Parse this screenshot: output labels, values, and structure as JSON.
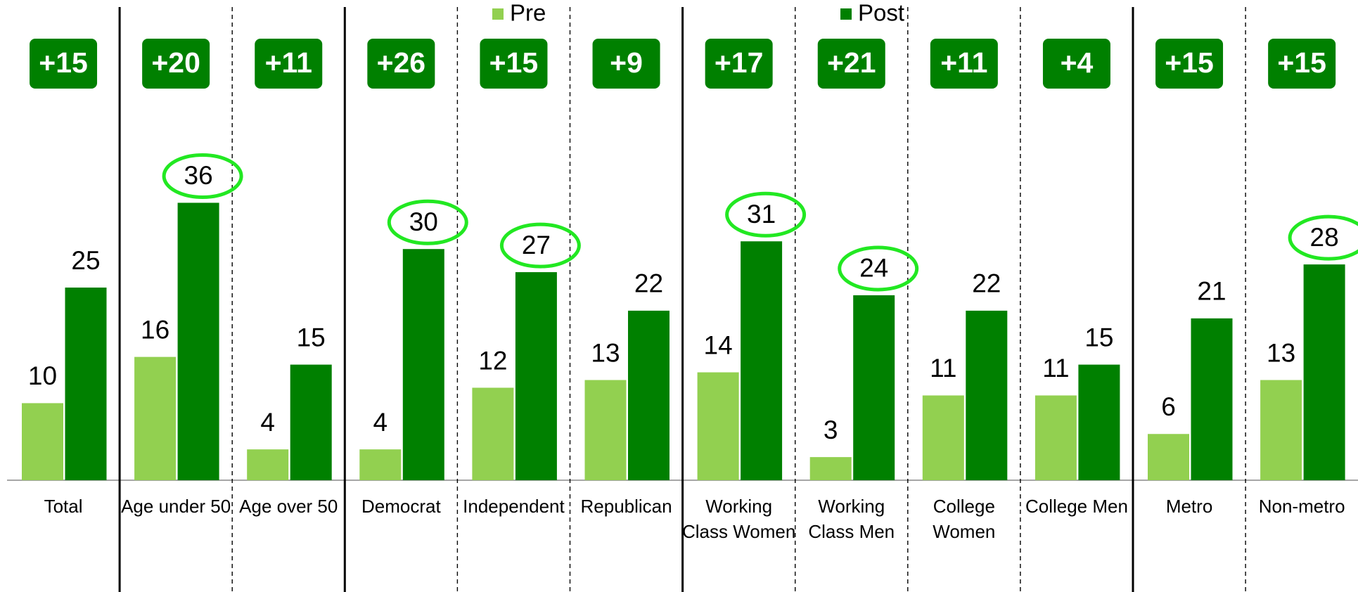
{
  "chart_data": {
    "type": "bar",
    "categories": [
      "Total",
      "Age under 50",
      "Age over 50",
      "Democrat",
      "Independent",
      "Republican",
      "Working\nClass Women",
      "Working\nClass Men",
      "College\nWomen",
      "College Men",
      "Metro",
      "Non-metro"
    ],
    "series": [
      {
        "name": "Pre",
        "color": "#92d050",
        "values": [
          10,
          16,
          4,
          4,
          12,
          13,
          14,
          3,
          11,
          11,
          6,
          13
        ]
      },
      {
        "name": "Post",
        "color": "#008000",
        "values": [
          25,
          36,
          15,
          30,
          27,
          22,
          31,
          24,
          22,
          15,
          21,
          28
        ],
        "highlighted": [
          false,
          true,
          false,
          true,
          true,
          false,
          true,
          true,
          false,
          false,
          false,
          true
        ]
      }
    ],
    "annotations": [
      "+15",
      "+20",
      "+11",
      "+26",
      "+15",
      "+9",
      "+17",
      "+21",
      "+11",
      "+4",
      "+15",
      "+15"
    ],
    "annotation_color": "#008000",
    "highlight_color": "#22e822",
    "ylim": [
      0,
      50
    ]
  }
}
